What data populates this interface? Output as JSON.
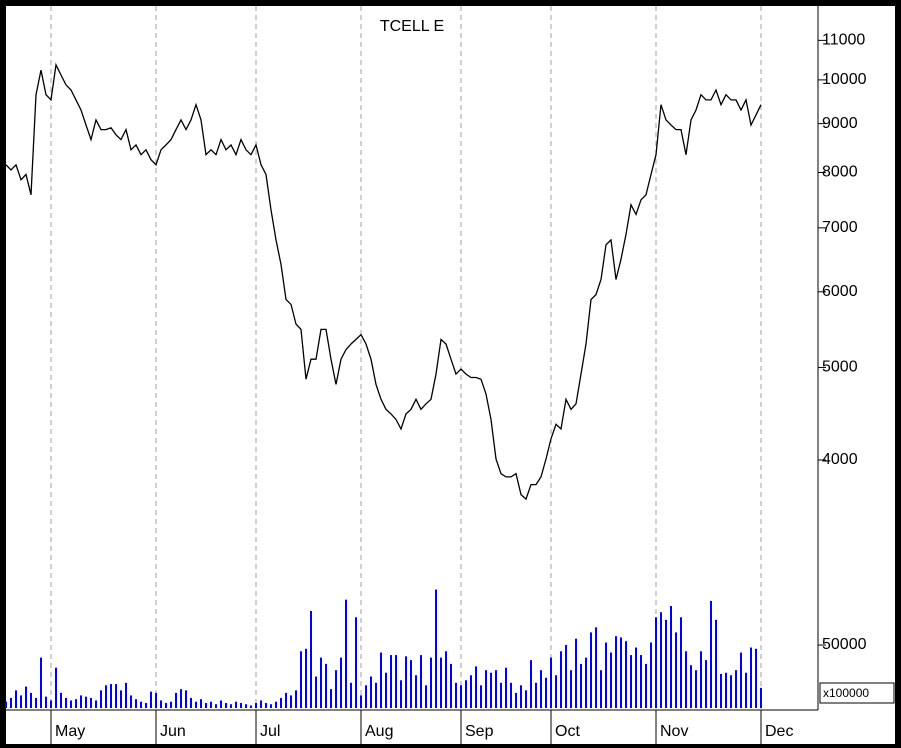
{
  "chart_data": [
    {
      "type": "line",
      "title": "TCELL E",
      "log_scale": true,
      "grid": true,
      "xlim": [
        0,
        162.4
      ],
      "xticks": [
        {
          "value": 9,
          "label": "May"
        },
        {
          "value": 30,
          "label": "Jun"
        },
        {
          "value": 50,
          "label": "Jul"
        },
        {
          "value": 71,
          "label": "Aug"
        },
        {
          "value": 91,
          "label": "Sep"
        },
        {
          "value": 109,
          "label": "Oct"
        },
        {
          "value": 130,
          "label": "Nov"
        },
        {
          "value": 151,
          "label": "Dec"
        }
      ],
      "ylim": [
        2200,
        11950
      ],
      "yticks": [
        4000,
        5000,
        6000,
        7000,
        8000,
        9000,
        10000,
        11000
      ],
      "series": [
        {
          "color": "#000000",
          "values": [
            8150,
            8050,
            8150,
            7860,
            7960,
            7580,
            9650,
            10240,
            9650,
            9530,
            10370,
            10120,
            9880,
            9760,
            9530,
            9300,
            8970,
            8660,
            9080,
            8870,
            8870,
            8910,
            8760,
            8660,
            8870,
            8450,
            8550,
            8350,
            8450,
            8250,
            8150,
            8450,
            8550,
            8660,
            8870,
            9080,
            8870,
            9080,
            9420,
            9080,
            8350,
            8450,
            8350,
            8660,
            8450,
            8550,
            8350,
            8660,
            8450,
            8350,
            8550,
            8150,
            7960,
            7310,
            6800,
            6410,
            5890,
            5820,
            5550,
            5480,
            4860,
            5100,
            5100,
            5480,
            5480,
            5100,
            4800,
            5100,
            5220,
            5290,
            5350,
            5410,
            5290,
            5100,
            4800,
            4630,
            4520,
            4470,
            4410,
            4310,
            4470,
            4520,
            4630,
            4520,
            4580,
            4630,
            4920,
            5350,
            5290,
            5100,
            4920,
            4980,
            4920,
            4880,
            4880,
            4860,
            4690,
            4410,
            4010,
            3870,
            3840,
            3840,
            3870,
            3680,
            3640,
            3770,
            3770,
            3840,
            4010,
            4210,
            4360,
            4310,
            4630,
            4520,
            4580,
            4920,
            5290,
            5890,
            5960,
            6180,
            6720,
            6800,
            6180,
            6490,
            6890,
            7400,
            7230,
            7490,
            7580,
            7960,
            8350,
            9420,
            9080,
            8970,
            8870,
            8870,
            8350,
            9080,
            9300,
            9650,
            9530,
            9530,
            9760,
            9420,
            9650,
            9530,
            9530,
            9300,
            9530,
            8970,
            9190,
            9420
          ]
        }
      ]
    },
    {
      "type": "bar",
      "axis_label": "x100000",
      "color": "#0000ff",
      "ylim": [
        0,
        100000
      ],
      "yticks": [
        50000
      ],
      "values": [
        5000,
        8000,
        14000,
        10000,
        17000,
        12000,
        8000,
        40000,
        9000,
        6000,
        32000,
        12000,
        8000,
        6000,
        7000,
        10000,
        9000,
        8000,
        6000,
        14000,
        18000,
        19000,
        19000,
        14000,
        20000,
        10000,
        7000,
        5000,
        4000,
        13000,
        12000,
        6000,
        4000,
        5000,
        12000,
        15000,
        14000,
        8000,
        5000,
        7000,
        4000,
        5000,
        3000,
        6000,
        4000,
        3000,
        5000,
        4000,
        3000,
        2000,
        4000,
        6000,
        4000,
        3000,
        5000,
        8000,
        12000,
        10000,
        14000,
        45000,
        47000,
        77000,
        25000,
        40000,
        35000,
        15000,
        30000,
        40000,
        86000,
        20000,
        72000,
        10000,
        18000,
        25000,
        20000,
        44000,
        28000,
        42000,
        42000,
        22000,
        41000,
        38000,
        26000,
        42000,
        18000,
        40000,
        94000,
        40000,
        45000,
        35000,
        20000,
        18000,
        22000,
        26000,
        33000,
        18000,
        30000,
        28000,
        30000,
        20000,
        32000,
        20000,
        12000,
        18000,
        14000,
        38000,
        20000,
        30000,
        24000,
        40000,
        26000,
        45000,
        50000,
        30000,
        55000,
        35000,
        40000,
        60000,
        64000,
        30000,
        52000,
        44000,
        57000,
        56000,
        53000,
        42000,
        48000,
        42000,
        35000,
        52000,
        72000,
        76000,
        70000,
        81000,
        60000,
        72000,
        45000,
        34000,
        30000,
        45000,
        38000,
        85000,
        70000,
        27000,
        28000,
        26000,
        30000,
        44000,
        28000,
        48000,
        47000,
        16000
      ]
    }
  ]
}
